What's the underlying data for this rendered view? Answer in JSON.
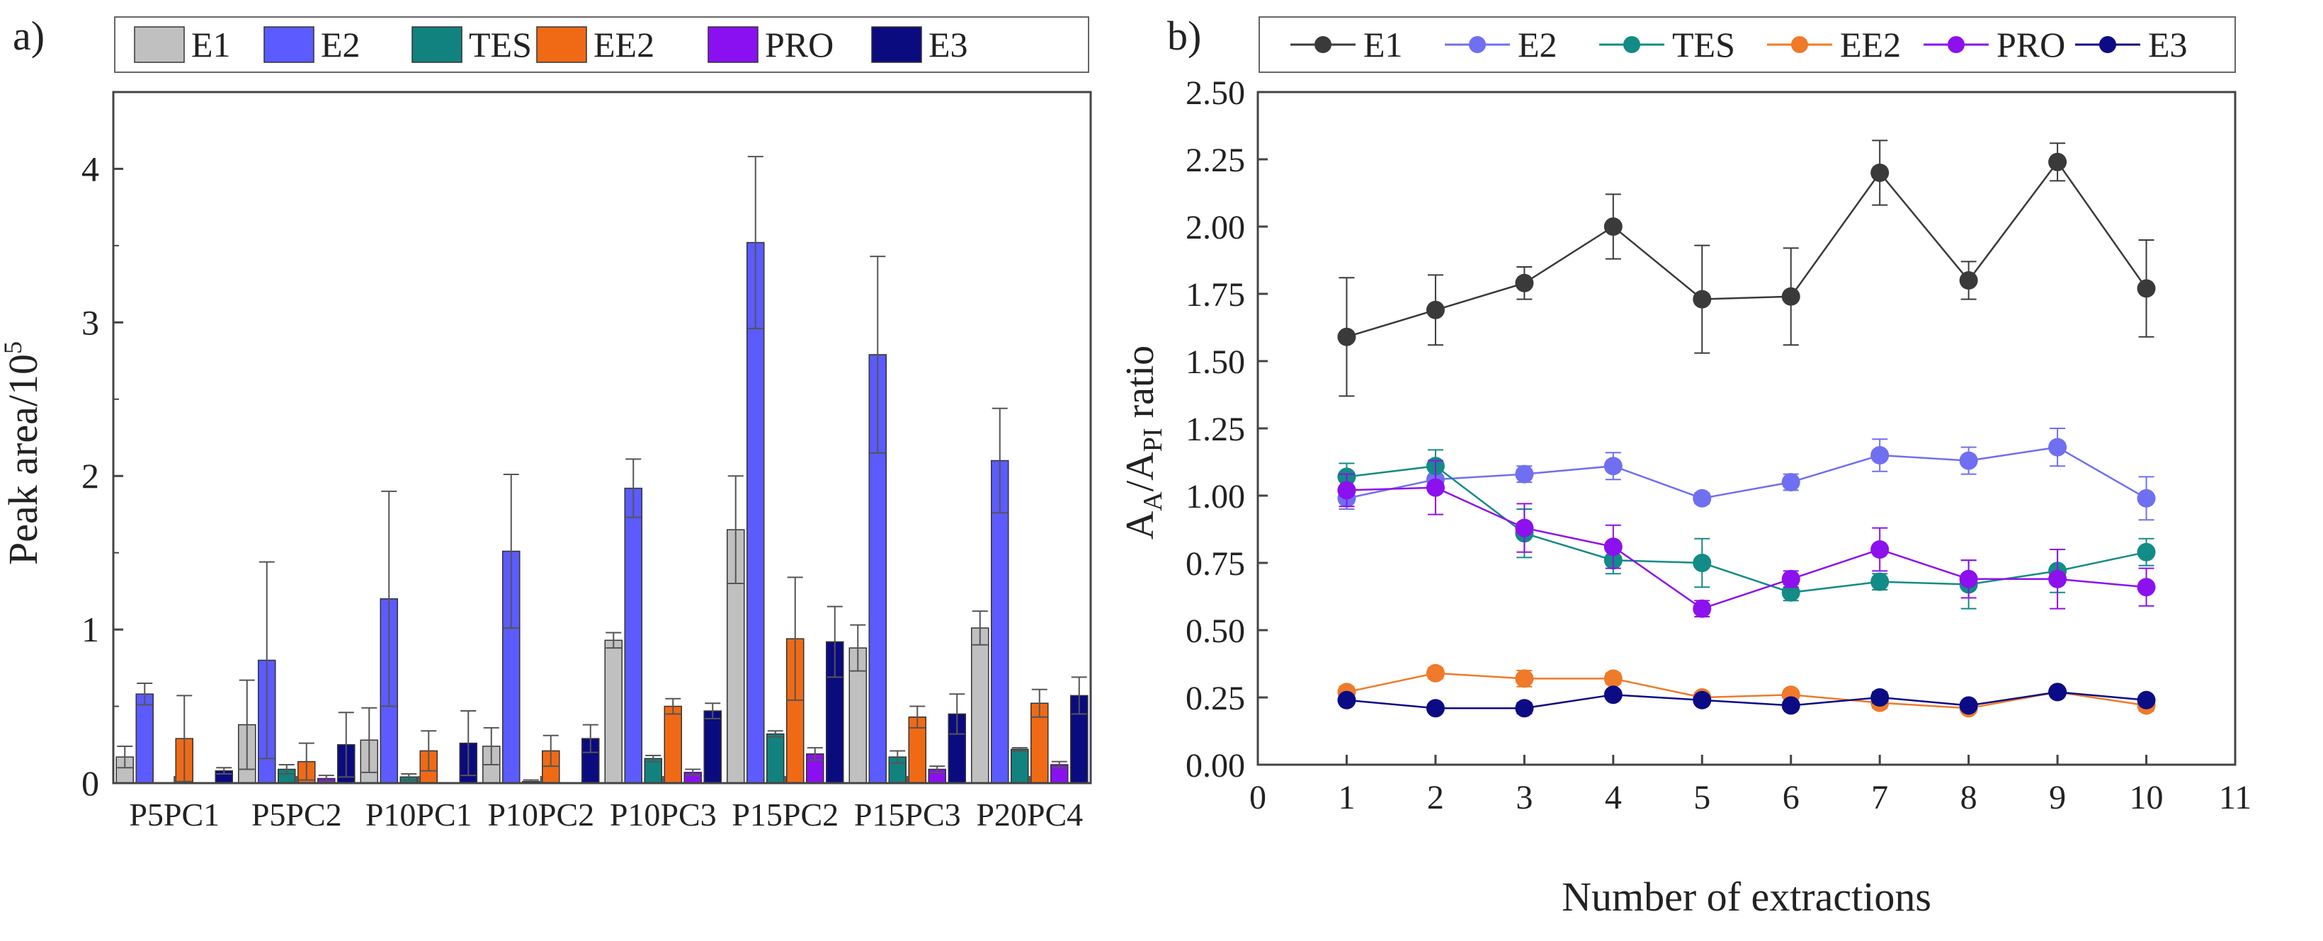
{
  "chart_data": [
    {
      "panel_label": "a)",
      "type": "bar",
      "title": "",
      "xlabel": "",
      "ylabel": "Peak area/10",
      "ylabel_superscript": "5",
      "ylim": [
        0,
        4.5
      ],
      "yticks": [
        "0",
        "1",
        "2",
        "3",
        "4"
      ],
      "grid": false,
      "legend_position": "top",
      "categories": [
        "P5PC1",
        "P5PC2",
        "P10PC1",
        "P10PC2",
        "P10PC3",
        "P15PC2",
        "P15PC3",
        "P20PC4"
      ],
      "series": [
        {
          "name": "E1",
          "color": "#c0c0c0",
          "values": [
            0.17,
            0.38,
            0.28,
            0.24,
            0.93,
            1.65,
            0.88,
            1.01
          ],
          "errors": [
            0.07,
            0.29,
            0.21,
            0.12,
            0.05,
            0.35,
            0.15,
            0.11
          ]
        },
        {
          "name": "E2",
          "color": "#5b5bff",
          "values": [
            0.58,
            0.8,
            1.2,
            1.51,
            1.92,
            3.52,
            2.79,
            2.1
          ],
          "errors": [
            0.07,
            0.64,
            0.7,
            0.5,
            0.19,
            0.56,
            0.64,
            0.34
          ]
        },
        {
          "name": "TES",
          "color": "#12827e",
          "values": [
            0.0,
            0.09,
            0.04,
            0.01,
            0.16,
            0.32,
            0.17,
            0.22
          ],
          "errors": [
            0.0,
            0.03,
            0.02,
            0.01,
            0.02,
            0.02,
            0.04,
            0.01
          ]
        },
        {
          "name": "EE2",
          "color": "#f06a16",
          "values": [
            0.29,
            0.14,
            0.21,
            0.21,
            0.5,
            0.94,
            0.43,
            0.52
          ],
          "errors": [
            0.28,
            0.12,
            0.13,
            0.1,
            0.05,
            0.4,
            0.07,
            0.09
          ]
        },
        {
          "name": "PRO",
          "color": "#8a10f2",
          "values": [
            0.0,
            0.03,
            0.0,
            0.0,
            0.07,
            0.19,
            0.09,
            0.12
          ],
          "errors": [
            0.0,
            0.02,
            0.0,
            0.0,
            0.02,
            0.04,
            0.02,
            0.02
          ]
        },
        {
          "name": "E3",
          "color": "#0b0b80",
          "values": [
            0.08,
            0.25,
            0.26,
            0.29,
            0.47,
            0.92,
            0.45,
            0.57
          ],
          "errors": [
            0.02,
            0.21,
            0.21,
            0.09,
            0.05,
            0.23,
            0.13,
            0.12
          ]
        }
      ]
    },
    {
      "panel_label": "b)",
      "type": "line",
      "title": "",
      "xlabel": "Number of extractions",
      "ylabel_main": "A",
      "ylabel_sub1": "A",
      "ylabel_mid": "/A",
      "ylabel_sub2": "PI",
      "ylabel_tail": " ratio",
      "xlim": [
        0,
        11
      ],
      "ylim": [
        0,
        2.5
      ],
      "xticks": [
        "0",
        "1",
        "2",
        "3",
        "4",
        "5",
        "6",
        "7",
        "8",
        "9",
        "10",
        "11"
      ],
      "yticks": [
        "0.00",
        "0.25",
        "0.50",
        "0.75",
        "1.00",
        "1.25",
        "1.50",
        "1.75",
        "2.00",
        "2.25",
        "2.50"
      ],
      "grid": false,
      "legend_position": "top",
      "x": [
        1,
        2,
        3,
        4,
        5,
        6,
        7,
        8,
        9,
        10
      ],
      "series": [
        {
          "name": "E1",
          "color": "#3a3a3a",
          "values": [
            1.59,
            1.69,
            1.79,
            2.0,
            1.73,
            1.74,
            2.2,
            1.8,
            2.24,
            1.77
          ],
          "errors": [
            0.22,
            0.13,
            0.06,
            0.12,
            0.2,
            0.18,
            0.12,
            0.07,
            0.07,
            0.18
          ]
        },
        {
          "name": "E2",
          "color": "#6f6ff2",
          "values": [
            0.99,
            1.06,
            1.08,
            1.11,
            0.99,
            1.05,
            1.15,
            1.13,
            1.18,
            0.99
          ],
          "errors": [
            0.04,
            0.04,
            0.03,
            0.05,
            0.02,
            0.03,
            0.06,
            0.05,
            0.07,
            0.08
          ]
        },
        {
          "name": "TES",
          "color": "#138b86",
          "values": [
            1.07,
            1.11,
            0.86,
            0.76,
            0.75,
            0.64,
            0.68,
            0.67,
            0.72,
            0.79
          ],
          "errors": [
            0.05,
            0.06,
            0.09,
            0.05,
            0.09,
            0.03,
            0.03,
            0.09,
            0.08,
            0.05
          ]
        },
        {
          "name": "EE2",
          "color": "#ef7a2a",
          "values": [
            0.27,
            0.34,
            0.32,
            0.32,
            0.25,
            0.26,
            0.23,
            0.21,
            0.27,
            0.22
          ],
          "errors": [
            0.02,
            0.02,
            0.03,
            0.02,
            0.01,
            0.01,
            0.02,
            0.01,
            0.01,
            0.02
          ]
        },
        {
          "name": "PRO",
          "color": "#8d10ee",
          "values": [
            1.02,
            1.03,
            0.88,
            0.81,
            0.58,
            0.69,
            0.8,
            0.69,
            0.69,
            0.66
          ],
          "errors": [
            0.06,
            0.1,
            0.09,
            0.08,
            0.03,
            0.03,
            0.08,
            0.07,
            0.11,
            0.07
          ]
        },
        {
          "name": "E3",
          "color": "#0b0b86",
          "values": [
            0.24,
            0.21,
            0.21,
            0.26,
            0.24,
            0.22,
            0.25,
            0.22,
            0.27,
            0.24
          ],
          "errors": [
            0.01,
            0.01,
            0.02,
            0.01,
            0.01,
            0.01,
            0.02,
            0.01,
            0.01,
            0.01
          ]
        }
      ]
    }
  ]
}
